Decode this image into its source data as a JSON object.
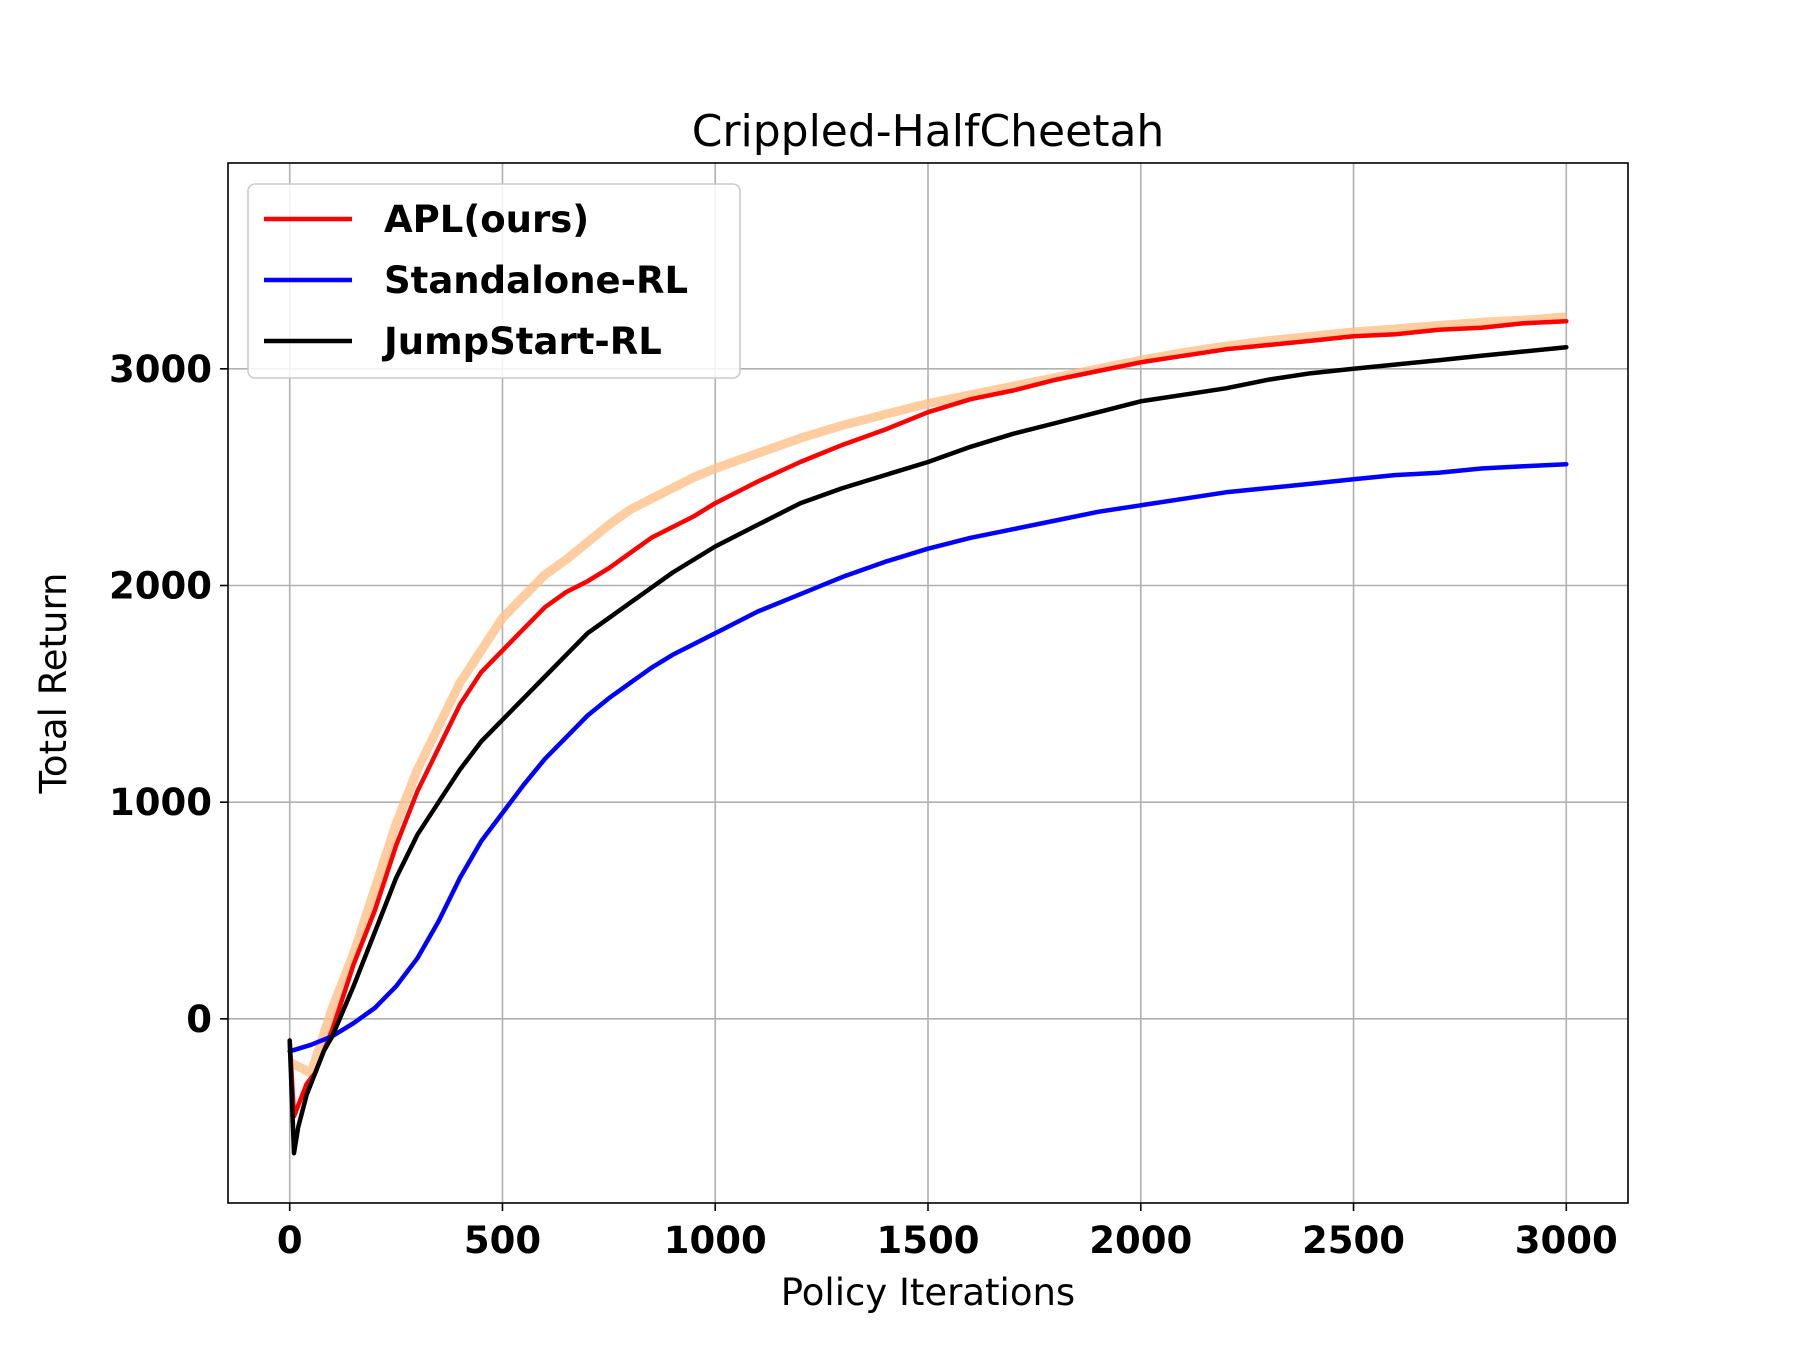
{
  "chart_data": {
    "type": "line",
    "title": "Crippled-HalfCheetah",
    "xlabel": "Policy Iterations",
    "ylabel": "Total Return",
    "xlim": [
      -145,
      3145
    ],
    "ylim": [
      -850,
      3950
    ],
    "xticks": [
      0,
      500,
      1000,
      1500,
      2000,
      2500,
      3000
    ],
    "yticks": [
      0,
      1000,
      2000,
      3000
    ],
    "grid": true,
    "legend_position": "top-left",
    "band": {
      "color": "#ffc088",
      "x": [
        0,
        50,
        100,
        150,
        200,
        250,
        300,
        350,
        400,
        450,
        500,
        550,
        600,
        650,
        700,
        750,
        800,
        850,
        900,
        950,
        1000,
        1100,
        1200,
        1300,
        1400,
        1500,
        1600,
        1700,
        1800,
        1900,
        2000,
        2100,
        2200,
        2300,
        2400,
        2500,
        2600,
        2700,
        2800,
        2900,
        3000
      ],
      "y": [
        -200,
        -250,
        50,
        300,
        600,
        900,
        1150,
        1350,
        1550,
        1700,
        1850,
        1950,
        2050,
        2120,
        2200,
        2280,
        2350,
        2400,
        2450,
        2500,
        2540,
        2610,
        2680,
        2740,
        2790,
        2840,
        2880,
        2920,
        2960,
        3000,
        3040,
        3075,
        3105,
        3130,
        3150,
        3170,
        3185,
        3200,
        3215,
        3225,
        3240
      ]
    },
    "series": [
      {
        "name": "APL(ours)",
        "color": "#ff0000",
        "x": [
          0,
          10,
          20,
          40,
          60,
          80,
          100,
          150,
          200,
          250,
          300,
          350,
          400,
          450,
          500,
          550,
          600,
          650,
          700,
          750,
          800,
          850,
          900,
          950,
          1000,
          1100,
          1200,
          1300,
          1400,
          1500,
          1600,
          1700,
          1800,
          1900,
          2000,
          2100,
          2200,
          2300,
          2400,
          2500,
          2600,
          2700,
          2800,
          2900,
          3000
        ],
        "y": [
          -100,
          -450,
          -400,
          -300,
          -250,
          -150,
          -50,
          250,
          500,
          800,
          1050,
          1250,
          1450,
          1600,
          1700,
          1800,
          1900,
          1970,
          2020,
          2080,
          2150,
          2220,
          2270,
          2320,
          2380,
          2480,
          2570,
          2650,
          2720,
          2800,
          2860,
          2900,
          2950,
          2990,
          3030,
          3060,
          3090,
          3110,
          3130,
          3150,
          3160,
          3180,
          3190,
          3210,
          3220
        ]
      },
      {
        "name": "Standalone-RL",
        "color": "#0000ff",
        "x": [
          0,
          50,
          100,
          150,
          200,
          250,
          300,
          350,
          400,
          450,
          500,
          550,
          600,
          650,
          700,
          750,
          800,
          850,
          900,
          950,
          1000,
          1100,
          1200,
          1300,
          1400,
          1500,
          1600,
          1700,
          1800,
          1900,
          2000,
          2100,
          2200,
          2300,
          2400,
          2500,
          2600,
          2700,
          2800,
          2900,
          3000
        ],
        "y": [
          -150,
          -120,
          -80,
          -20,
          50,
          150,
          280,
          450,
          650,
          820,
          950,
          1080,
          1200,
          1300,
          1400,
          1480,
          1550,
          1620,
          1680,
          1730,
          1780,
          1880,
          1960,
          2040,
          2110,
          2170,
          2220,
          2260,
          2300,
          2340,
          2370,
          2400,
          2430,
          2450,
          2470,
          2490,
          2510,
          2520,
          2540,
          2550,
          2560
        ]
      },
      {
        "name": "JumpStart-RL",
        "color": "#000000",
        "x": [
          0,
          10,
          20,
          40,
          60,
          80,
          100,
          150,
          200,
          250,
          300,
          350,
          400,
          450,
          500,
          550,
          600,
          650,
          700,
          750,
          800,
          850,
          900,
          950,
          1000,
          1100,
          1200,
          1300,
          1400,
          1500,
          1600,
          1700,
          1800,
          1900,
          2000,
          2100,
          2200,
          2300,
          2400,
          2500,
          2600,
          2700,
          2800,
          2900,
          3000
        ],
        "y": [
          -100,
          -620,
          -500,
          -350,
          -250,
          -150,
          -80,
          150,
          400,
          650,
          850,
          1000,
          1150,
          1280,
          1380,
          1480,
          1580,
          1680,
          1780,
          1850,
          1920,
          1990,
          2060,
          2120,
          2180,
          2280,
          2380,
          2450,
          2510,
          2570,
          2640,
          2700,
          2750,
          2800,
          2850,
          2880,
          2910,
          2950,
          2980,
          3000,
          3020,
          3040,
          3060,
          3080,
          3100
        ]
      }
    ]
  }
}
